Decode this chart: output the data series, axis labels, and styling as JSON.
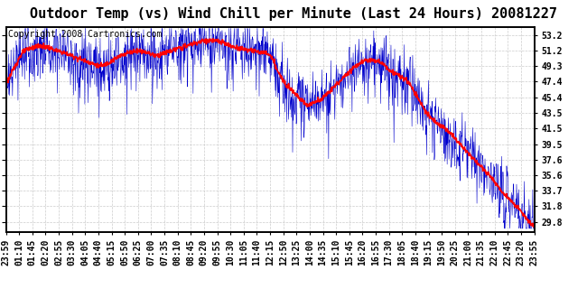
{
  "title": "Outdoor Temp (vs) Wind Chill per Minute (Last 24 Hours) 20081227",
  "copyright": "Copyright 2008 Cartronics.com",
  "y_ticks": [
    29.8,
    31.8,
    33.7,
    35.6,
    37.6,
    39.5,
    41.5,
    43.5,
    45.4,
    47.4,
    49.3,
    51.2,
    53.2
  ],
  "ylim": [
    28.5,
    54.2
  ],
  "x_tick_labels": [
    "23:59",
    "01:10",
    "01:45",
    "02:20",
    "02:55",
    "03:30",
    "04:05",
    "04:40",
    "05:15",
    "05:50",
    "06:25",
    "07:00",
    "07:35",
    "08:10",
    "08:45",
    "09:20",
    "09:55",
    "10:30",
    "11:05",
    "11:40",
    "12:15",
    "12:50",
    "13:25",
    "14:00",
    "14:35",
    "15:10",
    "15:45",
    "16:20",
    "16:55",
    "17:30",
    "18:05",
    "18:40",
    "19:15",
    "19:50",
    "20:25",
    "21:00",
    "21:35",
    "22:10",
    "22:45",
    "23:20",
    "23:55"
  ],
  "background_color": "#ffffff",
  "plot_bg_color": "#ffffff",
  "grid_color": "#cccccc",
  "temp_color": "#0000cc",
  "windchill_color": "#ff0000",
  "title_fontsize": 11,
  "tick_fontsize": 7,
  "copyright_fontsize": 7,
  "n_points": 1440
}
